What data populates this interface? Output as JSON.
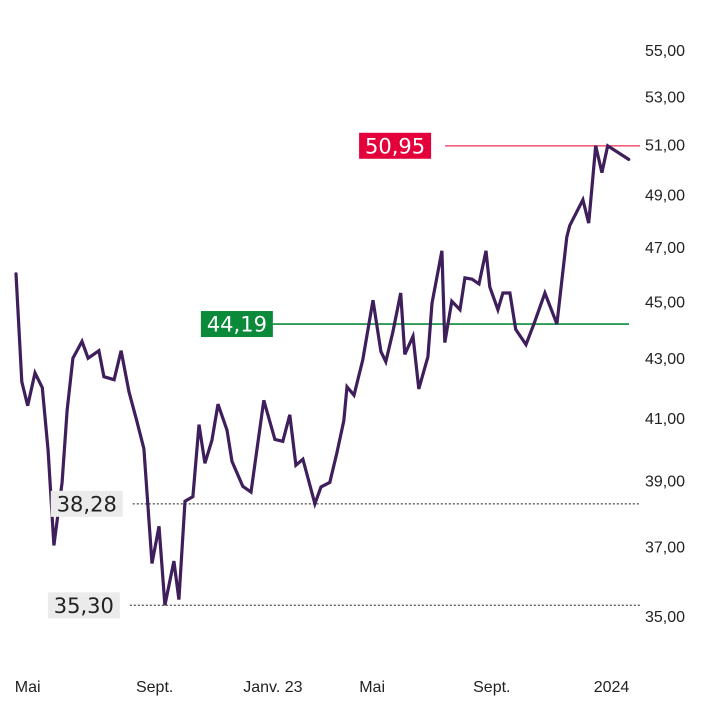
{
  "chart_data": {
    "type": "line",
    "title": "",
    "xlabel": "",
    "ylabel": "",
    "scale": "log",
    "ylim": [
      35,
      55
    ],
    "grid": false,
    "x_unit": "months since start",
    "xlim": [
      0,
      21
    ],
    "x_tick_labels": [
      {
        "label": "Mai",
        "t": 0.4
      },
      {
        "label": "Sept.",
        "t": 4.75
      },
      {
        "label": "Janv. 23",
        "t": 8.8
      },
      {
        "label": "Mai",
        "t": 12.2
      },
      {
        "label": "Sept.",
        "t": 16.3
      },
      {
        "label": "2024",
        "t": 20.4
      }
    ],
    "y_tick_labels": [
      {
        "label": "55,00",
        "v": 55
      },
      {
        "label": "53,00",
        "v": 53
      },
      {
        "label": "51,00",
        "v": 51
      },
      {
        "label": "49,00",
        "v": 49
      },
      {
        "label": "47,00",
        "v": 47
      },
      {
        "label": "45,00",
        "v": 45
      },
      {
        "label": "43,00",
        "v": 43
      },
      {
        "label": "41,00",
        "v": 41
      },
      {
        "label": "39,00",
        "v": 39
      },
      {
        "label": "37,00",
        "v": 37
      },
      {
        "label": "35,00",
        "v": 35
      }
    ],
    "series": [
      {
        "name": "price",
        "color": "#3f1e5c",
        "x": [
          0,
          0.2,
          0.4,
          0.65,
          0.9,
          1.1,
          1.3,
          1.58,
          1.75,
          1.95,
          2.26,
          2.47,
          2.84,
          3.01,
          3.36,
          3.6,
          3.87,
          4.14,
          4.38,
          4.66,
          4.9,
          5.1,
          5.41,
          5.58,
          5.79,
          6.06,
          6.27,
          6.47,
          6.71,
          6.92,
          7.23,
          7.4,
          7.77,
          8.05,
          8.49,
          8.87,
          9.14,
          9.38,
          9.59,
          9.83,
          10.24,
          10.45,
          10.75,
          10.99,
          11.23,
          11.34,
          11.58,
          11.88,
          12.23,
          12.5,
          12.67,
          12.91,
          13.18,
          13.32,
          13.6,
          13.8,
          14.11,
          14.25,
          14.59,
          14.69,
          14.93,
          15.21,
          15.38,
          15.62,
          15.86,
          16.1,
          16.23,
          16.51,
          16.68,
          16.92,
          17.12,
          17.47,
          17.77,
          18.12,
          18.53,
          18.87,
          18.97,
          19.42,
          19.62,
          19.86,
          20.07,
          20.27,
          20.99
        ],
        "values": [
          46.0,
          42.2,
          41.4,
          42.5,
          42.0,
          39.95,
          37.03,
          38.94,
          41.24,
          43.0,
          43.58,
          43.0,
          43.26,
          42.37,
          42.27,
          43.26,
          41.86,
          40.9,
          40.0,
          36.5,
          37.6,
          35.3,
          36.57,
          35.46,
          38.36,
          38.5,
          40.78,
          39.54,
          40.27,
          41.45,
          40.6,
          39.6,
          38.82,
          38.64,
          41.58,
          40.3,
          40.24,
          41.1,
          39.48,
          39.67,
          38.28,
          38.8,
          38.94,
          39.86,
          40.9,
          42.03,
          41.75,
          42.95,
          45.04,
          43.23,
          42.88,
          43.9,
          45.3,
          43.13,
          43.76,
          41.96,
          43.05,
          44.93,
          46.85,
          43.54,
          45.0,
          44.7,
          45.85,
          45.8,
          45.63,
          46.85,
          45.52,
          44.7,
          45.3,
          45.3,
          44.0,
          43.47,
          44.27,
          45.3,
          44.19,
          47.37,
          47.8,
          48.8,
          47.9,
          50.95,
          49.87,
          50.95,
          50.4
        ]
      }
    ],
    "reference_lines": [
      {
        "name": "max",
        "value": 50.95,
        "label": "50,95",
        "style": "solid",
        "color": "#e4003a",
        "line_color": "#f0607a",
        "text_color": "#ffffff",
        "t_start": 14.7
      },
      {
        "name": "last-ref",
        "value": 44.19,
        "label": "44,19",
        "style": "solid",
        "color": "#0b8a3a",
        "line_color": "#0b8a3a",
        "text_color": "#ffffff",
        "t_start": 8.8
      },
      {
        "name": "level-high",
        "value": 38.28,
        "label": "38,28",
        "style": "dotted",
        "color": "#ebebeb",
        "line_color": "#222222",
        "text_color": "#222222",
        "t_start": 4.0
      },
      {
        "name": "min",
        "value": 35.3,
        "label": "35,30",
        "style": "dotted",
        "color": "#ebebeb",
        "line_color": "#222222",
        "text_color": "#222222",
        "t_start": 3.9
      }
    ]
  }
}
